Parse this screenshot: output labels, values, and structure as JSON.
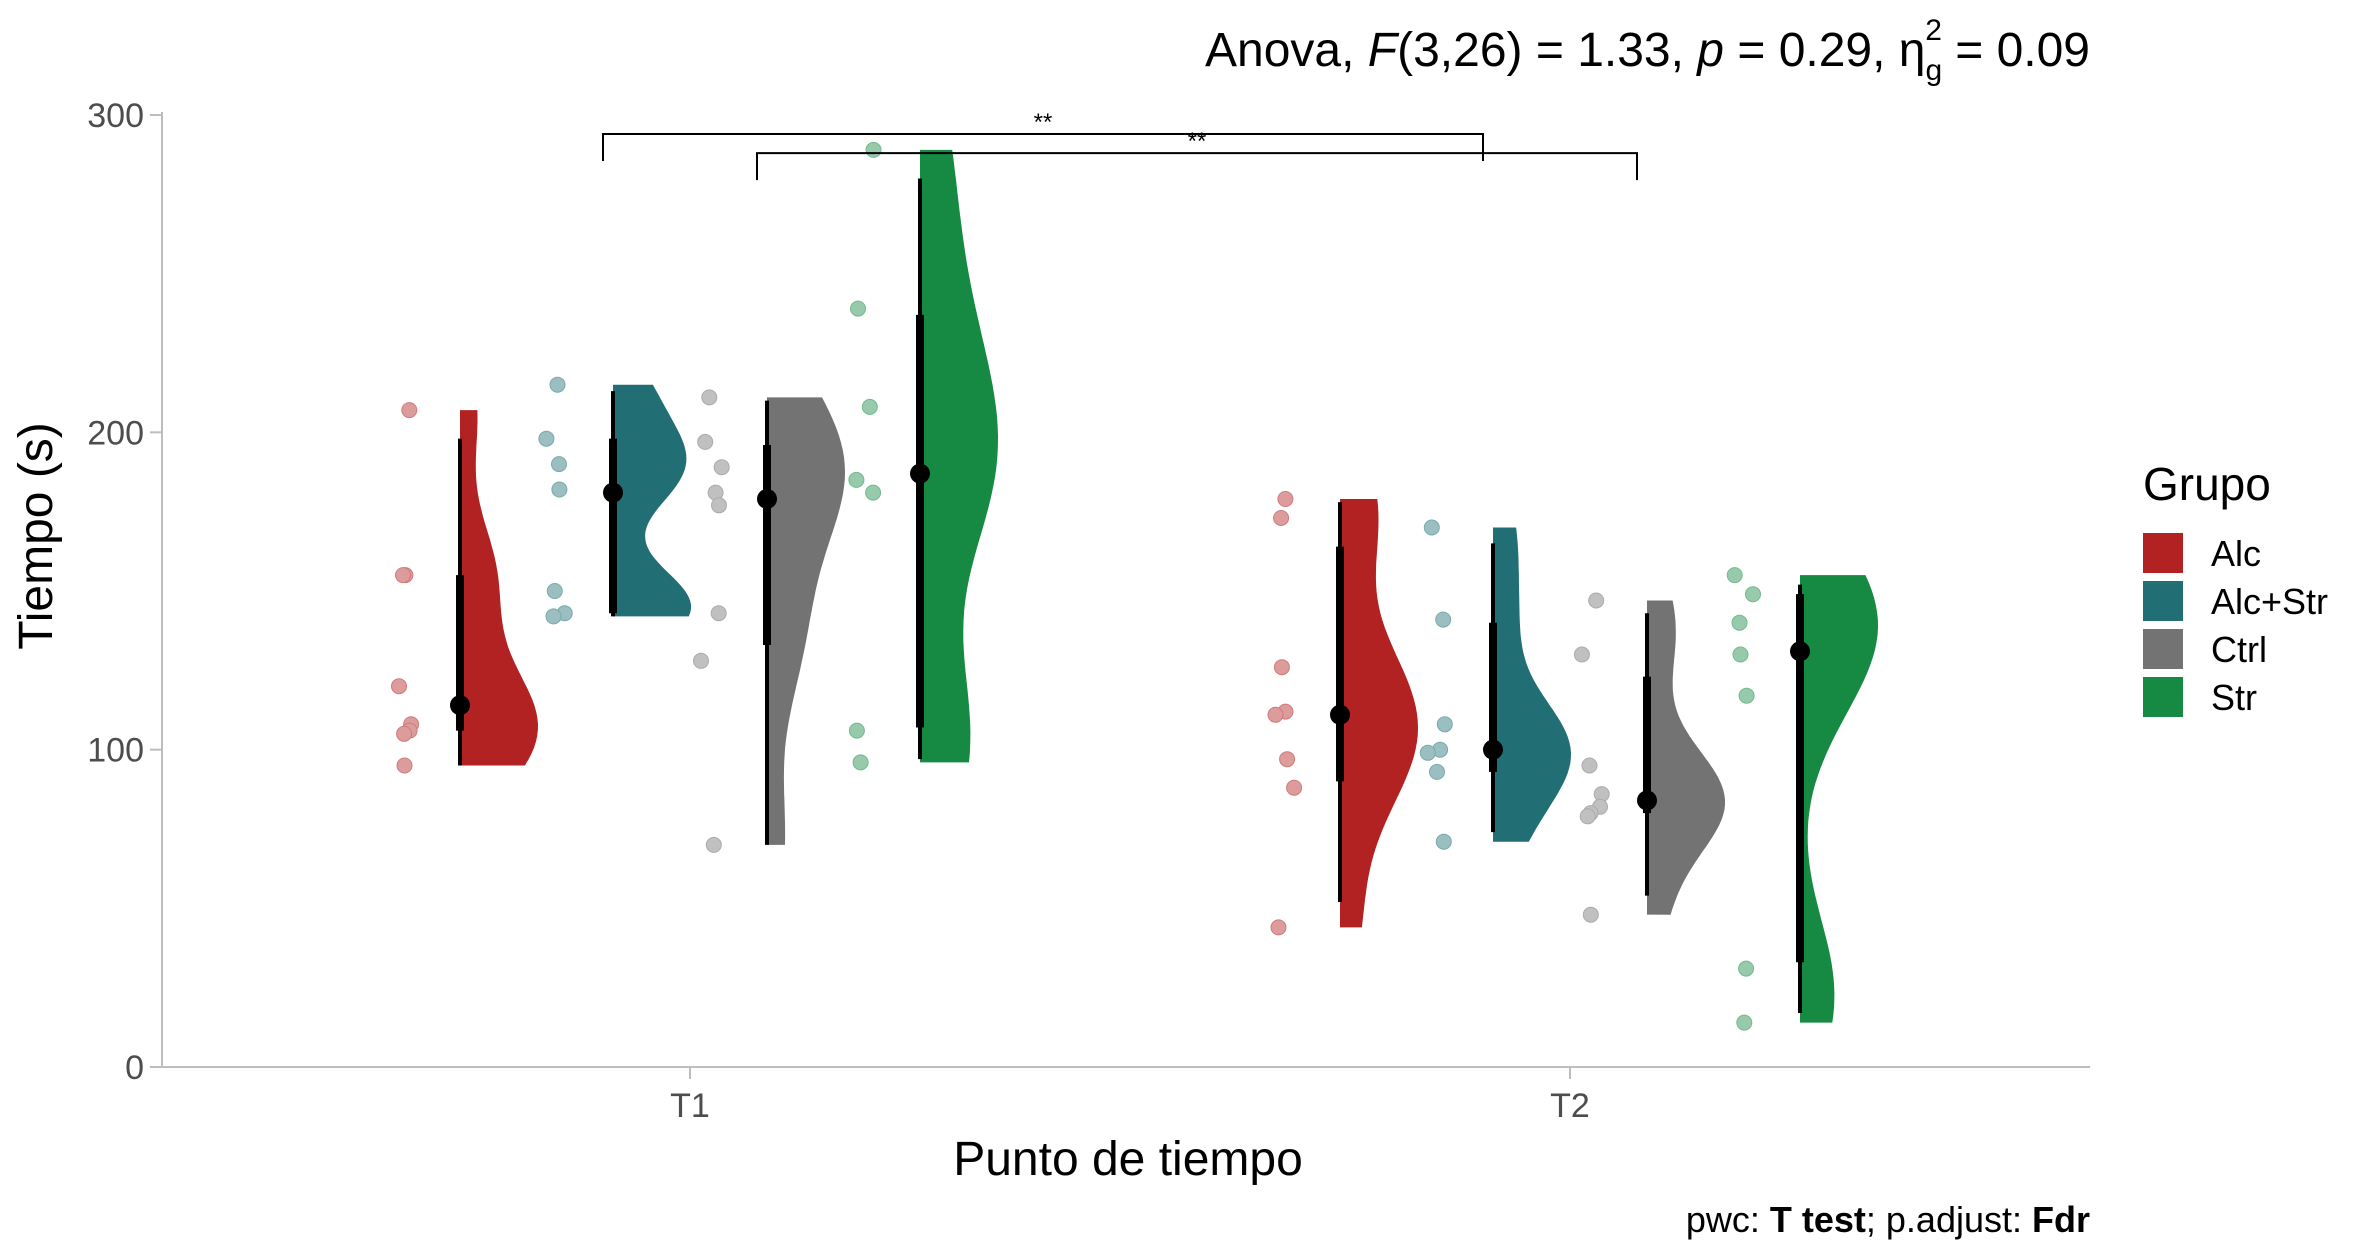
{
  "chart_data": {
    "type": "raincloud",
    "title": {
      "prefix": "Anova, ",
      "stat_symbol": "F",
      "df": "(3,26) = 1.33, ",
      "p_symbol": "p",
      "p_value": " = 0.29, ",
      "eta_symbol": "η",
      "eta_sub": "g",
      "eta_sup": "2",
      "eta_value": " = 0.09"
    },
    "caption": {
      "part1": "pwc: ",
      "bold1": "T test",
      "part2": "; p.adjust: ",
      "bold2": "Fdr"
    },
    "xlabel": "Punto de tiempo",
    "ylabel": "Tiempo (s)",
    "ylim": [
      0,
      300
    ],
    "yticks": [
      0,
      100,
      200,
      300
    ],
    "categories": [
      "T1",
      "T2"
    ],
    "legend": {
      "title": "Grupo",
      "position": "right"
    },
    "groups": [
      {
        "name": "Alc",
        "color": "#B22222"
      },
      {
        "name": "Alc+Str",
        "color": "#216F74"
      },
      {
        "name": "Ctrl",
        "color": "#737373"
      },
      {
        "name": "Str",
        "color": "#168A42"
      }
    ],
    "data": [
      {
        "time": "T1",
        "group": "Alc",
        "points": [
          207,
          155,
          155,
          120,
          108,
          106,
          105,
          95
        ],
        "median": 114,
        "q1": 106,
        "q3": 155,
        "whisker": [
          95,
          198
        ]
      },
      {
        "time": "T1",
        "group": "Alc+Str",
        "points": [
          215,
          198,
          190,
          182,
          150,
          143,
          142
        ],
        "median": 181,
        "q1": 143,
        "q3": 198,
        "whisker": [
          142,
          213
        ]
      },
      {
        "time": "T1",
        "group": "Ctrl",
        "points": [
          211,
          197,
          189,
          181,
          177,
          143,
          128,
          70
        ],
        "median": 179,
        "q1": 133,
        "q3": 196,
        "whisker": [
          70,
          210
        ]
      },
      {
        "time": "T1",
        "group": "Str",
        "points": [
          289,
          239,
          208,
          185,
          181,
          106,
          96
        ],
        "median": 187,
        "q1": 107,
        "q3": 237,
        "whisker": [
          97,
          280
        ]
      },
      {
        "time": "T2",
        "group": "Alc",
        "points": [
          179,
          173,
          126,
          112,
          111,
          97,
          88,
          44
        ],
        "median": 111,
        "q1": 90,
        "q3": 164,
        "whisker": [
          52,
          178
        ]
      },
      {
        "time": "T2",
        "group": "Alc+Str",
        "points": [
          170,
          141,
          108,
          100,
          99,
          93,
          71
        ],
        "median": 100,
        "q1": 93,
        "q3": 140,
        "whisker": [
          74,
          165
        ]
      },
      {
        "time": "T2",
        "group": "Ctrl",
        "points": [
          147,
          130,
          95,
          86,
          82,
          80,
          79,
          48
        ],
        "median": 84,
        "q1": 80,
        "q3": 123,
        "whisker": [
          54,
          143
        ]
      },
      {
        "time": "T2",
        "group": "Str",
        "points": [
          155,
          149,
          140,
          130,
          117,
          31,
          14
        ],
        "median": 131,
        "q1": 33,
        "q3": 149,
        "whisker": [
          17,
          152
        ]
      }
    ],
    "significance": [
      {
        "from": {
          "time": "T1",
          "group": "Alc+Str"
        },
        "to": {
          "time": "T2",
          "group": "Alc+Str"
        },
        "label": "**",
        "y": 294
      },
      {
        "from": {
          "time": "T1",
          "group": "Ctrl"
        },
        "to": {
          "time": "T2",
          "group": "Ctrl"
        },
        "label": "**",
        "y": 288
      }
    ]
  }
}
